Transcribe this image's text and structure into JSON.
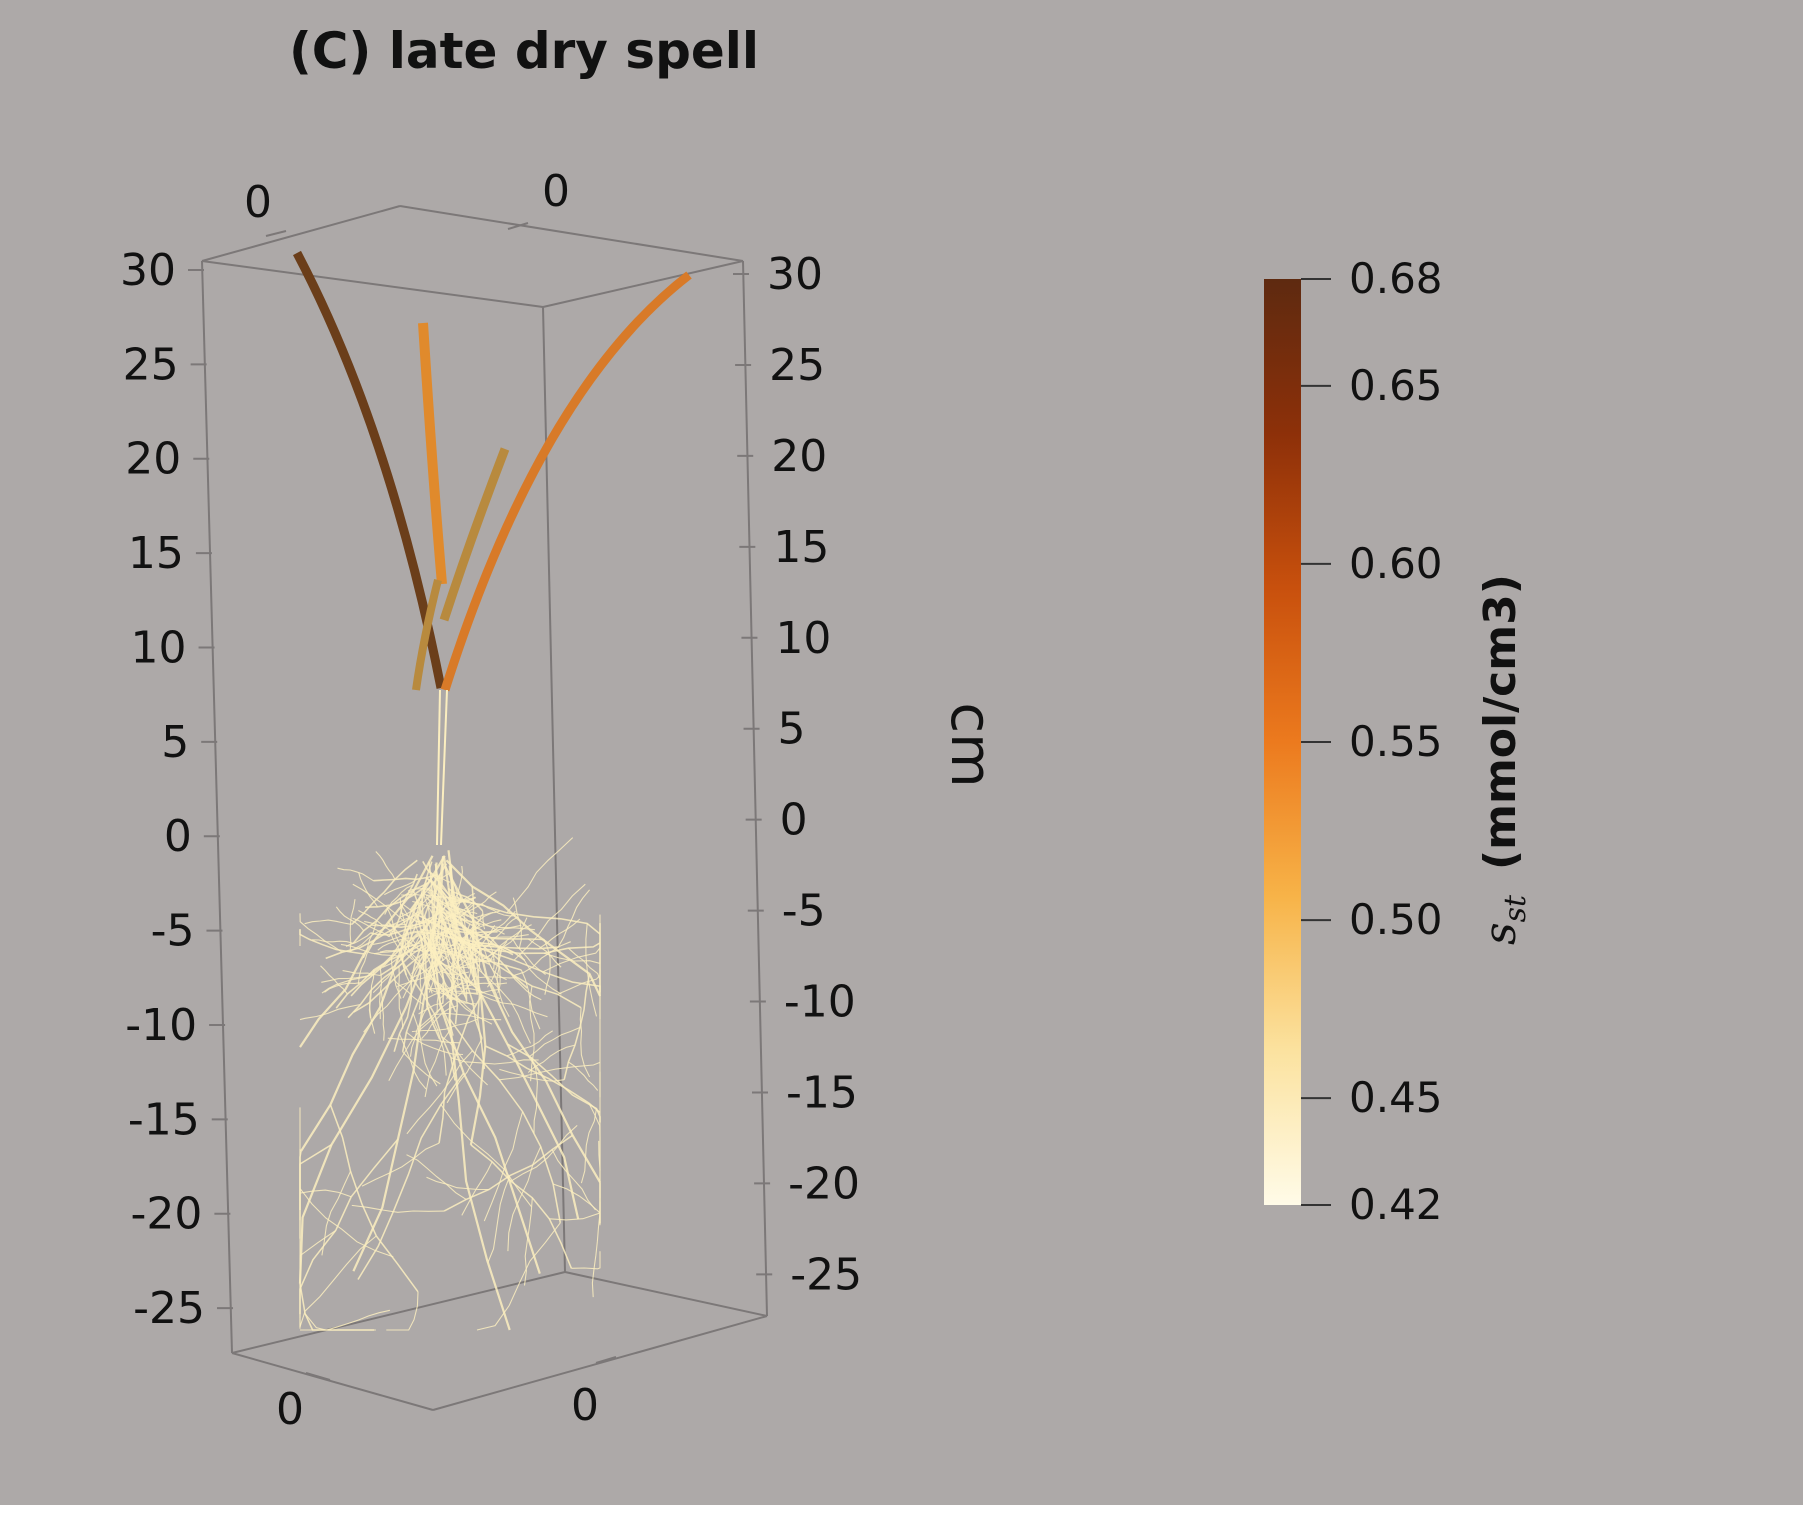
{
  "figure": {
    "title": "(C) late dry spell",
    "background": "#ada9a8",
    "box_line_color": "#7c7878"
  },
  "axes": {
    "z_axis_title": "cm",
    "left_ticks": [
      "30",
      "25",
      "20",
      "15",
      "10",
      "5",
      "0",
      "-5",
      "-10",
      "-15",
      "-20",
      "-25"
    ],
    "right_ticks": [
      "30",
      "25",
      "20",
      "15",
      "10",
      "5",
      "0",
      "-5",
      "-10",
      "-15",
      "-20",
      "-25"
    ],
    "top_ticks": [
      "0",
      "0"
    ],
    "bottom_ticks": [
      "0",
      "0"
    ]
  },
  "colorbar": {
    "symbol": "s",
    "symbol_subscript": "st",
    "unit": "(mmol/cm3)",
    "ticks": [
      "0.68",
      "0.65",
      "0.60",
      "0.55",
      "0.50",
      "0.45",
      "0.42"
    ],
    "tick_values": [
      0.68,
      0.65,
      0.6,
      0.55,
      0.5,
      0.45,
      0.42
    ],
    "range": [
      0.42,
      0.68
    ],
    "colormap": [
      "#fffbe8",
      "#fbe29f",
      "#f7b348",
      "#ec7a1e",
      "#c8500d",
      "#8d3009",
      "#5e2a10"
    ]
  },
  "plant": {
    "leaf_colors": [
      "#6b3e1a",
      "#e08a2c",
      "#b88a3e",
      "#d87a28"
    ],
    "root_color": "#fbeec0"
  }
}
